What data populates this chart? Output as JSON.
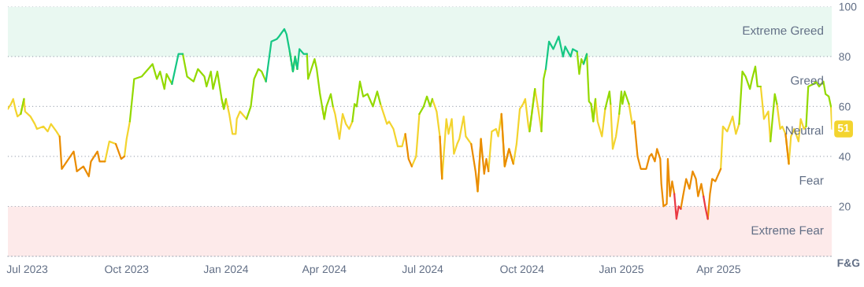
{
  "chart_data": {
    "type": "line",
    "ylabel": "F&G",
    "xlim": [
      "2023-06-13",
      "2025-07-15"
    ],
    "xticks": [
      {
        "value": "2023-07-01",
        "label": "Jul 2023"
      },
      {
        "value": "2023-10-01",
        "label": "Oct 2023"
      },
      {
        "value": "2024-01-01",
        "label": "Jan 2024"
      },
      {
        "value": "2024-04-01",
        "label": "Apr 2024"
      },
      {
        "value": "2024-07-01",
        "label": "Jul 2024"
      },
      {
        "value": "2024-10-01",
        "label": "Oct 2024"
      },
      {
        "value": "2025-01-01",
        "label": "Jan 2025"
      },
      {
        "value": "2025-04-01",
        "label": "Apr 2025"
      }
    ],
    "ylim": [
      0,
      100
    ],
    "yticks": [
      20,
      40,
      60,
      80,
      100
    ],
    "grid": "y",
    "marker": "none",
    "line_style": "solid",
    "bands": [
      {
        "axis": "y",
        "from": 80,
        "to": 100,
        "color": "#e9f8f1",
        "label": "Extreme Greed"
      },
      {
        "axis": "y",
        "from": 0,
        "to": 20,
        "color": "#fdeaea",
        "label": "Extreme Fear"
      }
    ],
    "annotations": [
      "Greed",
      "Neutral",
      "Fear",
      {
        "text": "51",
        "x": "2025-07-15",
        "y": 51
      }
    ],
    "x": [
      "2023-06-13",
      "2023-06-16",
      "2023-06-18",
      "2023-06-20",
      "2023-06-22",
      "2023-06-25",
      "2023-06-28",
      "2023-06-29",
      "2023-07-04",
      "2023-07-08",
      "2023-07-10",
      "2023-07-16",
      "2023-07-20",
      "2023-07-23",
      "2023-07-28",
      "2023-07-31",
      "2023-08-02",
      "2023-08-13",
      "2023-08-16",
      "2023-08-22",
      "2023-08-27",
      "2023-08-29",
      "2023-09-04",
      "2023-09-06",
      "2023-09-11",
      "2023-09-15",
      "2023-09-21",
      "2023-09-26",
      "2023-09-29",
      "2023-10-01",
      "2023-10-04",
      "2023-10-08",
      "2023-10-15",
      "2023-10-25",
      "2023-10-29",
      "2023-11-01",
      "2023-11-05",
      "2023-11-07",
      "2023-11-12",
      "2023-11-18",
      "2023-11-22",
      "2023-11-26",
      "2023-12-02",
      "2023-12-06",
      "2023-12-12",
      "2023-12-14",
      "2023-12-18",
      "2023-12-20",
      "2023-12-24",
      "2023-12-28",
      "2023-12-30",
      "2024-01-01",
      "2024-01-04",
      "2024-01-07",
      "2024-01-10",
      "2024-01-11",
      "2024-01-14",
      "2024-01-20",
      "2024-01-24",
      "2024-01-27",
      "2024-01-31",
      "2024-02-03",
      "2024-02-07",
      "2024-02-12",
      "2024-02-17",
      "2024-02-19",
      "2024-02-24",
      "2024-02-26",
      "2024-02-29",
      "2024-03-03",
      "2024-03-05",
      "2024-03-07",
      "2024-03-09",
      "2024-03-13",
      "2024-03-16",
      "2024-03-17",
      "2024-03-20",
      "2024-03-23",
      "2024-03-25",
      "2024-03-28",
      "2024-03-30",
      "2024-04-01",
      "2024-04-03",
      "2024-04-07",
      "2024-04-09",
      "2024-04-11",
      "2024-04-15",
      "2024-04-18",
      "2024-04-21",
      "2024-04-24",
      "2024-04-27",
      "2024-04-29",
      "2024-05-01",
      "2024-05-04",
      "2024-05-07",
      "2024-05-11",
      "2024-05-16",
      "2024-05-20",
      "2024-05-23",
      "2024-05-26",
      "2024-05-29",
      "2024-05-31",
      "2024-06-04",
      "2024-06-08",
      "2024-06-12",
      "2024-06-15",
      "2024-06-18",
      "2024-06-21",
      "2024-06-25",
      "2024-06-28",
      "2024-07-02",
      "2024-07-05",
      "2024-07-08",
      "2024-07-10",
      "2024-07-14",
      "2024-07-17",
      "2024-07-19",
      "2024-07-23",
      "2024-07-25",
      "2024-07-28",
      "2024-07-30",
      "2024-08-02",
      "2024-08-04",
      "2024-08-08",
      "2024-08-10",
      "2024-08-15",
      "2024-08-19",
      "2024-08-21",
      "2024-08-24",
      "2024-08-27",
      "2024-08-29",
      "2024-08-31",
      "2024-09-03",
      "2024-09-07",
      "2024-09-09",
      "2024-09-12",
      "2024-09-15",
      "2024-09-19",
      "2024-09-23",
      "2024-09-26",
      "2024-09-29",
      "2024-10-02",
      "2024-10-04",
      "2024-10-07",
      "2024-10-08",
      "2024-10-13",
      "2024-10-16",
      "2024-10-19",
      "2024-10-21",
      "2024-10-23",
      "2024-10-26",
      "2024-10-30",
      "2024-11-04",
      "2024-11-08",
      "2024-11-10",
      "2024-11-15",
      "2024-11-17",
      "2024-11-21",
      "2024-11-23",
      "2024-11-25",
      "2024-11-27",
      "2024-11-30",
      "2024-12-02",
      "2024-12-04",
      "2024-12-06",
      "2024-12-08",
      "2024-12-10",
      "2024-12-14",
      "2024-12-17",
      "2024-12-21",
      "2024-12-22",
      "2024-12-24",
      "2024-12-27",
      "2024-12-30",
      "2025-01-01",
      "2025-01-02",
      "2025-01-04",
      "2025-01-08",
      "2025-01-11",
      "2025-01-13",
      "2025-01-16",
      "2025-01-19",
      "2025-01-24",
      "2025-01-27",
      "2025-01-29",
      "2025-02-01",
      "2025-02-03",
      "2025-02-06",
      "2025-02-07",
      "2025-02-09",
      "2025-02-12",
      "2025-02-13",
      "2025-02-15",
      "2025-02-17",
      "2025-02-19",
      "2025-02-21",
      "2025-02-23",
      "2025-02-25",
      "2025-02-27",
      "2025-03-02",
      "2025-03-05",
      "2025-03-08",
      "2025-03-11",
      "2025-03-13",
      "2025-03-16",
      "2025-03-18",
      "2025-03-20",
      "2025-03-22",
      "2025-03-24",
      "2025-03-26",
      "2025-03-29",
      "2025-04-03",
      "2025-04-05",
      "2025-04-09",
      "2025-04-14",
      "2025-04-17",
      "2025-04-20",
      "2025-04-23",
      "2025-04-26",
      "2025-04-30",
      "2025-05-02",
      "2025-05-05",
      "2025-05-07",
      "2025-05-10",
      "2025-05-13",
      "2025-05-17",
      "2025-05-19",
      "2025-05-23",
      "2025-05-25",
      "2025-05-28",
      "2025-05-30",
      "2025-06-02",
      "2025-06-05",
      "2025-06-07",
      "2025-06-10",
      "2025-06-14",
      "2025-06-16",
      "2025-06-19",
      "2025-06-21",
      "2025-06-23",
      "2025-06-28",
      "2025-06-30",
      "2025-07-03",
      "2025-07-07",
      "2025-07-09",
      "2025-07-12",
      "2025-07-14",
      "2025-07-15"
    ],
    "series": [
      {
        "color": "#f3d42f",
        "values": [
          59,
          61,
          63,
          59,
          56,
          57,
          63,
          58,
          56,
          53,
          51,
          52,
          50,
          53,
          50,
          48,
          null,
          null,
          null,
          null,
          null,
          null,
          null,
          null,
          38,
          46,
          45,
          null,
          40,
          47,
          54,
          null,
          null,
          null,
          null,
          null,
          null,
          null,
          null,
          null,
          null,
          null,
          null,
          null,
          null,
          null,
          null,
          null,
          null,
          63,
          59,
          63,
          57,
          49,
          49,
          55,
          58,
          55,
          null,
          null,
          null,
          null,
          null,
          null,
          null,
          null,
          null,
          null,
          null,
          null,
          null,
          null,
          null,
          null,
          null,
          null,
          null,
          null,
          null,
          null,
          60,
          55,
          null,
          null,
          60,
          57,
          47,
          57,
          53,
          51,
          54,
          null,
          null,
          null,
          null,
          null,
          null,
          null,
          61,
          57,
          53,
          54,
          51,
          44,
          44,
          49,
          null,
          36,
          40,
          57,
          null,
          null,
          null,
          63,
          58,
          48,
          31,
          55,
          49,
          55,
          41,
          45,
          47,
          56,
          48,
          45,
          null,
          26,
          47,
          null,
          null,
          34,
          50,
          51,
          48,
          57,
          36,
          43,
          37,
          45,
          59,
          61,
          63,
          52,
          50,
          67,
          59,
          50,
          null,
          null,
          null,
          null,
          null,
          null,
          null,
          null,
          null,
          null,
          null,
          null,
          null,
          null,
          null,
          61,
          54,
          63,
          54,
          48,
          59,
          null,
          61,
          43,
          48,
          57,
          null,
          null,
          null,
          61,
          53,
          54,
          null,
          null,
          null,
          null,
          null,
          null,
          null,
          null,
          null,
          null,
          null,
          null,
          null,
          null,
          null,
          null,
          null,
          null,
          null,
          null,
          null,
          null,
          null,
          null,
          null,
          null,
          null,
          null,
          null,
          null,
          null,
          35,
          52,
          50,
          56,
          49,
          53,
          null,
          null,
          null,
          null,
          null,
          null,
          68,
          55,
          58,
          46,
          null,
          61,
          51,
          52,
          49,
          37,
          48,
          51,
          46,
          55,
          51,
          52,
          null,
          null,
          null,
          null,
          null,
          null,
          null,
          60,
          51
        ]
      },
      {
        "color": "#93d900",
        "values": [
          null,
          null,
          null,
          null,
          null,
          57,
          63,
          null,
          null,
          null,
          null,
          null,
          null,
          null,
          null,
          null,
          null,
          null,
          null,
          null,
          null,
          null,
          null,
          null,
          null,
          null,
          null,
          null,
          null,
          null,
          54,
          71,
          72,
          77,
          71,
          74,
          67,
          73,
          69,
          null,
          81,
          72,
          70,
          75,
          72,
          68,
          74,
          67,
          74,
          63,
          59,
          63,
          null,
          null,
          null,
          null,
          null,
          55,
          60,
          71,
          75,
          74,
          70,
          null,
          null,
          null,
          null,
          null,
          82,
          74,
          80,
          75,
          null,
          null,
          81,
          71,
          75,
          79,
          75,
          65,
          60,
          55,
          60,
          65,
          60,
          null,
          null,
          null,
          null,
          null,
          54,
          61,
          60,
          70,
          64,
          65,
          60,
          66,
          61,
          null,
          null,
          null,
          null,
          null,
          null,
          null,
          null,
          null,
          null,
          57,
          60,
          64,
          60,
          63,
          null,
          null,
          null,
          null,
          null,
          null,
          null,
          null,
          null,
          null,
          null,
          null,
          null,
          null,
          null,
          null,
          null,
          null,
          null,
          null,
          null,
          null,
          null,
          null,
          null,
          null,
          null,
          null,
          null,
          null,
          50,
          67,
          null,
          50,
          71,
          75,
          null,
          null,
          null,
          null,
          null,
          null,
          null,
          82,
          73,
          79,
          77,
          81,
          62,
          61,
          54,
          63,
          null,
          null,
          59,
          66,
          61,
          null,
          null,
          57,
          66,
          61,
          66,
          61,
          null,
          null,
          null,
          null,
          null,
          null,
          null,
          null,
          null,
          null,
          null,
          null,
          null,
          null,
          null,
          null,
          null,
          null,
          null,
          null,
          null,
          null,
          null,
          null,
          null,
          null,
          null,
          null,
          null,
          null,
          null,
          null,
          null,
          null,
          null,
          null,
          null,
          null,
          53,
          74,
          72,
          67,
          71,
          76,
          68,
          68,
          null,
          null,
          46,
          65,
          61,
          null,
          null,
          null,
          null,
          null,
          null,
          null,
          null,
          null,
          52,
          68,
          69,
          70,
          68,
          70,
          65,
          64,
          60,
          null
        ]
      },
      {
        "color": "#16c784",
        "values": [
          null,
          null,
          null,
          null,
          null,
          null,
          null,
          null,
          null,
          null,
          null,
          null,
          null,
          null,
          null,
          null,
          null,
          null,
          null,
          null,
          null,
          null,
          null,
          null,
          null,
          null,
          null,
          null,
          null,
          null,
          null,
          null,
          null,
          null,
          null,
          null,
          null,
          null,
          69,
          81,
          81,
          null,
          null,
          null,
          null,
          null,
          null,
          null,
          null,
          null,
          null,
          null,
          null,
          null,
          null,
          null,
          null,
          null,
          null,
          null,
          null,
          null,
          70,
          86,
          87,
          88,
          91,
          89,
          82,
          74,
          80,
          75,
          83,
          81,
          81,
          null,
          null,
          null,
          null,
          null,
          null,
          null,
          null,
          null,
          null,
          null,
          null,
          null,
          null,
          null,
          null,
          null,
          null,
          null,
          null,
          null,
          null,
          null,
          null,
          null,
          null,
          null,
          null,
          null,
          null,
          null,
          null,
          null,
          null,
          null,
          null,
          null,
          null,
          null,
          null,
          null,
          null,
          null,
          null,
          null,
          null,
          null,
          null,
          null,
          null,
          null,
          null,
          null,
          null,
          null,
          null,
          null,
          null,
          null,
          null,
          null,
          null,
          null,
          null,
          null,
          null,
          null,
          null,
          null,
          null,
          null,
          null,
          null,
          null,
          75,
          86,
          83,
          88,
          80,
          84,
          80,
          83,
          82,
          null,
          null,
          77,
          81,
          null,
          null,
          null,
          null,
          null,
          null,
          null,
          null,
          null,
          null,
          null,
          null,
          null,
          null,
          null,
          null,
          null,
          null,
          null,
          null,
          null,
          null,
          null,
          null,
          null,
          null,
          null,
          null,
          null,
          null,
          null,
          null,
          null,
          null,
          null,
          null,
          null,
          null,
          null,
          null,
          null,
          null,
          null,
          null,
          null,
          null,
          null,
          null,
          null,
          null,
          null,
          null,
          null,
          null,
          null,
          null,
          null,
          null,
          null,
          null,
          null,
          null,
          null,
          null,
          null,
          null,
          null,
          null,
          null,
          null,
          null,
          null,
          null,
          null,
          null,
          null,
          null,
          null,
          null,
          null,
          null,
          null,
          null,
          null,
          null,
          null
        ]
      },
      {
        "color": "#ea8c00",
        "values": [
          null,
          null,
          null,
          null,
          null,
          null,
          null,
          null,
          null,
          null,
          null,
          null,
          null,
          null,
          null,
          48,
          35,
          42,
          34,
          36,
          32,
          38,
          42,
          38,
          38,
          null,
          45,
          39,
          40,
          null,
          null,
          null,
          null,
          null,
          null,
          null,
          null,
          null,
          null,
          null,
          null,
          null,
          null,
          null,
          null,
          null,
          null,
          null,
          null,
          null,
          null,
          null,
          null,
          null,
          null,
          null,
          null,
          null,
          null,
          null,
          null,
          null,
          null,
          null,
          null,
          null,
          null,
          null,
          null,
          null,
          null,
          null,
          null,
          null,
          null,
          null,
          null,
          null,
          null,
          null,
          null,
          null,
          null,
          null,
          null,
          null,
          null,
          null,
          null,
          null,
          null,
          null,
          null,
          null,
          null,
          null,
          null,
          null,
          null,
          null,
          null,
          null,
          null,
          null,
          null,
          49,
          39,
          36,
          null,
          null,
          null,
          null,
          null,
          null,
          null,
          48,
          31,
          null,
          null,
          null,
          null,
          null,
          null,
          null,
          null,
          45,
          34,
          26,
          47,
          33,
          39,
          34,
          null,
          null,
          null,
          57,
          36,
          43,
          37,
          null,
          null,
          null,
          null,
          null,
          null,
          null,
          null,
          null,
          null,
          null,
          null,
          null,
          null,
          null,
          null,
          null,
          null,
          null,
          null,
          null,
          null,
          null,
          null,
          null,
          null,
          null,
          null,
          null,
          null,
          null,
          null,
          null,
          null,
          null,
          null,
          null,
          null,
          null,
          null,
          54,
          40,
          35,
          35,
          40,
          41,
          38,
          43,
          39,
          29,
          20,
          21,
          39,
          24,
          30,
          25,
          null,
          null,
          19,
          24,
          31,
          27,
          34,
          31,
          24,
          29,
          24,
          null,
          15,
          25,
          31,
          30,
          35,
          null,
          null,
          null,
          null,
          null,
          null,
          null,
          null,
          null,
          null,
          null,
          null,
          null,
          null,
          null,
          null,
          null,
          null,
          null,
          49,
          37,
          null,
          null,
          null,
          null,
          null,
          null,
          null,
          null,
          null,
          null,
          null,
          null,
          null,
          null,
          null
        ]
      },
      {
        "color": "#ea3943",
        "values": [
          null,
          null,
          null,
          null,
          null,
          null,
          null,
          null,
          null,
          null,
          null,
          null,
          null,
          null,
          null,
          null,
          null,
          null,
          null,
          null,
          null,
          null,
          null,
          null,
          null,
          null,
          null,
          null,
          null,
          null,
          null,
          null,
          null,
          null,
          null,
          null,
          null,
          null,
          null,
          null,
          null,
          null,
          null,
          null,
          null,
          null,
          null,
          null,
          null,
          null,
          null,
          null,
          null,
          null,
          null,
          null,
          null,
          null,
          null,
          null,
          null,
          null,
          null,
          null,
          null,
          null,
          null,
          null,
          null,
          null,
          null,
          null,
          null,
          null,
          null,
          null,
          null,
          null,
          null,
          null,
          null,
          null,
          null,
          null,
          null,
          null,
          null,
          null,
          null,
          null,
          null,
          null,
          null,
          null,
          null,
          null,
          null,
          null,
          null,
          null,
          null,
          null,
          null,
          null,
          null,
          null,
          null,
          null,
          null,
          null,
          null,
          null,
          null,
          null,
          null,
          null,
          null,
          null,
          null,
          null,
          null,
          null,
          null,
          null,
          null,
          null,
          null,
          null,
          null,
          null,
          null,
          null,
          null,
          null,
          null,
          null,
          null,
          null,
          null,
          null,
          null,
          null,
          null,
          null,
          null,
          null,
          null,
          null,
          null,
          null,
          null,
          null,
          null,
          null,
          null,
          null,
          null,
          null,
          null,
          null,
          null,
          null,
          null,
          null,
          null,
          null,
          null,
          null,
          null,
          null,
          null,
          null,
          null,
          null,
          null,
          null,
          null,
          null,
          null,
          null,
          null,
          null,
          null,
          null,
          null,
          null,
          null,
          null,
          null,
          null,
          null,
          null,
          null,
          null,
          25,
          15,
          20,
          19,
          null,
          null,
          null,
          null,
          null,
          null,
          null,
          24,
          19,
          15,
          null,
          null,
          null,
          null,
          null,
          null,
          null,
          null,
          null,
          null,
          null,
          null,
          null,
          null,
          null,
          null,
          null,
          null,
          null,
          null,
          null,
          null,
          null,
          null,
          null,
          null,
          null,
          null,
          null,
          null,
          null,
          null,
          null,
          null,
          null,
          null,
          null,
          null,
          null,
          null
        ]
      }
    ]
  }
}
